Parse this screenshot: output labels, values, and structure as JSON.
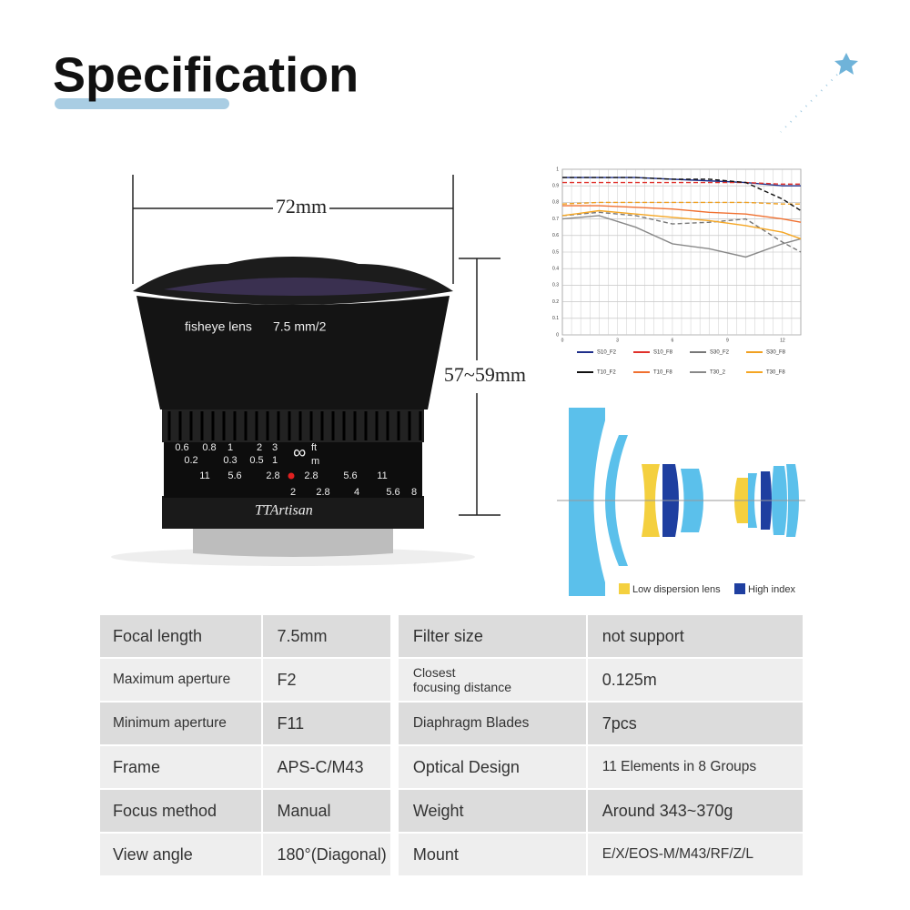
{
  "header": {
    "title": "Specification"
  },
  "dimensions": {
    "width": "72mm",
    "height": "57~59mm"
  },
  "lens": {
    "name": "fisheye lens",
    "model": "7.5 mm/2",
    "brand": "TTArtisan",
    "ft_scale": [
      "0.6",
      "0.8",
      "1",
      "2",
      "3"
    ],
    "m_scale": [
      "0.2",
      "0.3",
      "0.5",
      "1"
    ],
    "infinity": "∞",
    "ft_unit": "ft",
    "m_unit": "m",
    "dof_scale": [
      "11",
      "5.6",
      "2.8",
      "2.8",
      "5.6",
      "11"
    ],
    "aperture_scale": [
      "2",
      "2.8",
      "4",
      "5.6",
      "8"
    ]
  },
  "chart_data": {
    "type": "line",
    "x": [
      0,
      2,
      4,
      6,
      8,
      10,
      12,
      13
    ],
    "xlim": [
      0,
      13
    ],
    "xticks": [
      0,
      3,
      6,
      9,
      12
    ],
    "ylim": [
      0,
      1
    ],
    "yticks": [
      0,
      0.1,
      0.2,
      0.3,
      0.4,
      0.5,
      0.6,
      0.7,
      0.8,
      0.9,
      1
    ],
    "grid": true,
    "series": [
      {
        "name": "S10_F2",
        "color": "#1f2f8a",
        "dashed": false,
        "values": [
          0.95,
          0.95,
          0.95,
          0.94,
          0.93,
          0.92,
          0.9,
          0.9
        ]
      },
      {
        "name": "S10_F8",
        "color": "#e0302a",
        "dashed": true,
        "values": [
          0.92,
          0.92,
          0.92,
          0.92,
          0.92,
          0.92,
          0.91,
          0.91
        ]
      },
      {
        "name": "S30_F2",
        "color": "#777777",
        "dashed": true,
        "values": [
          0.72,
          0.74,
          0.72,
          0.67,
          0.68,
          0.7,
          0.56,
          0.5
        ]
      },
      {
        "name": "S30_F8",
        "color": "#f0a020",
        "dashed": true,
        "values": [
          0.79,
          0.8,
          0.8,
          0.8,
          0.8,
          0.8,
          0.79,
          0.79
        ]
      },
      {
        "name": "T10_F2",
        "color": "#111111",
        "dashed": true,
        "values": [
          0.95,
          0.95,
          0.95,
          0.94,
          0.94,
          0.92,
          0.82,
          0.75
        ]
      },
      {
        "name": "T10_F8",
        "color": "#f07030",
        "dashed": false,
        "values": [
          0.78,
          0.78,
          0.77,
          0.76,
          0.74,
          0.73,
          0.7,
          0.68
        ]
      },
      {
        "name": "T30_2",
        "color": "#888888",
        "dashed": false,
        "values": [
          0.7,
          0.72,
          0.65,
          0.55,
          0.52,
          0.47,
          0.55,
          0.58
        ]
      },
      {
        "name": "T30_F8",
        "color": "#f5a623",
        "dashed": false,
        "values": [
          0.72,
          0.75,
          0.73,
          0.71,
          0.69,
          0.66,
          0.62,
          0.58
        ]
      }
    ]
  },
  "diagram": {
    "legend": [
      {
        "label": "Low dispersion lens",
        "color": "#f4d03f"
      },
      {
        "label": "High index",
        "color": "#1f3fa0"
      }
    ]
  },
  "table": {
    "rows": [
      [
        "Focal length",
        "7.5mm",
        "Filter size",
        "not support"
      ],
      [
        "Maximum aperture",
        "F2",
        [
          "Closest",
          "focusing distance"
        ],
        "0.125m"
      ],
      [
        "Minimum aperture",
        "F11",
        "Diaphragm Blades",
        "7pcs"
      ],
      [
        "Frame",
        "APS-C/M43",
        "Optical Design",
        "11 Elements in 8 Groups"
      ],
      [
        "Focus method",
        "Manual",
        "Weight",
        "Around 343~370g"
      ],
      [
        "View angle",
        "180°(Diagonal)",
        "Mount",
        "E/X/EOS-M/M43/RF/Z/L"
      ]
    ]
  }
}
